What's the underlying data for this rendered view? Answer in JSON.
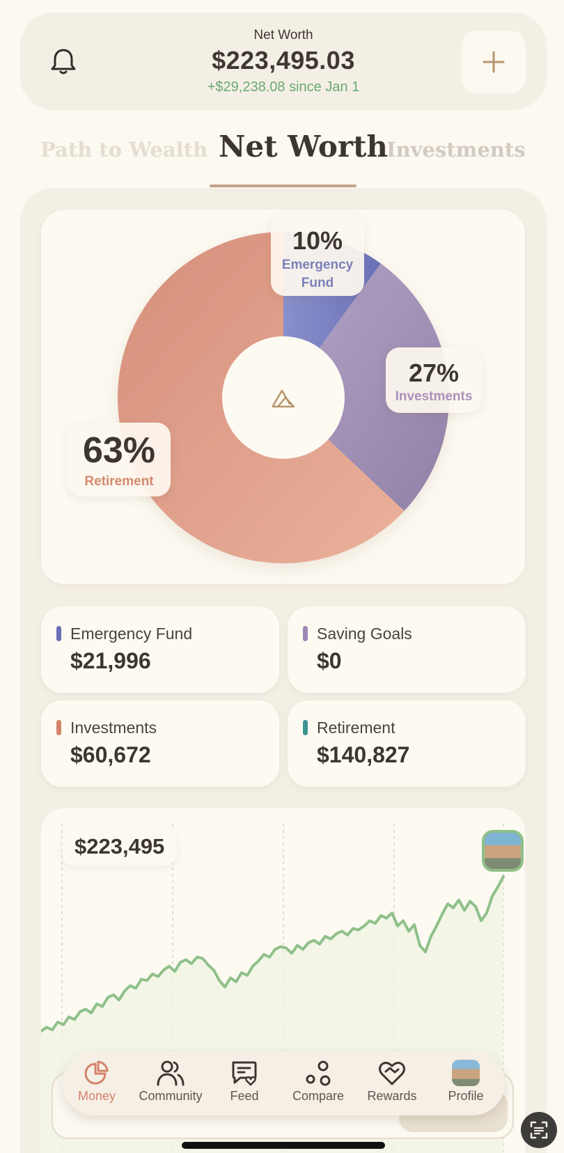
{
  "header": {
    "label": "Net Worth",
    "value": "$223,495.03",
    "change": "+$29,238.08 since Jan 1",
    "left_icon": "bell-icon",
    "right_icon": "plus-icon"
  },
  "tabs": [
    {
      "label": "Path to Wealth",
      "active": false
    },
    {
      "label": "Net Worth",
      "active": true
    },
    {
      "label": "Investments",
      "active": false
    }
  ],
  "donut": {
    "center_icon": "triangle-logo-icon",
    "segments": [
      {
        "pct": "10%",
        "name_line1": "Emergency",
        "name_line2": "Fund",
        "value": 10,
        "color_from": "#8289c6",
        "color_to": "#6a70b6"
      },
      {
        "pct": "27%",
        "name": "Investments",
        "value": 27,
        "color_from": "#ad9dc1",
        "color_to": "#9585a9"
      },
      {
        "pct": "63%",
        "name": "Retirement",
        "value": 63,
        "color_from": "#e9ae97",
        "color_to": "#d58f7b"
      }
    ]
  },
  "categories": [
    {
      "name": "Emergency Fund",
      "value": "$21,996",
      "color": "#6a70b6"
    },
    {
      "name": "Saving Goals",
      "value": "$0",
      "color": "#9c88b6"
    },
    {
      "name": "Investments",
      "value": "$60,672",
      "color": "#d4826a"
    },
    {
      "name": "Retirement",
      "value": "$140,827",
      "color": "#3d9494"
    }
  ],
  "chart_data": {
    "type": "line",
    "current_label": "$223,495",
    "color": "#8fc08a",
    "values": [
      0.05,
      0.08,
      0.06,
      0.12,
      0.1,
      0.16,
      0.14,
      0.2,
      0.22,
      0.19,
      0.26,
      0.24,
      0.31,
      0.33,
      0.29,
      0.36,
      0.4,
      0.38,
      0.45,
      0.44,
      0.49,
      0.47,
      0.52,
      0.55,
      0.51,
      0.58,
      0.6,
      0.57,
      0.62,
      0.61,
      0.56,
      0.52,
      0.44,
      0.39,
      0.46,
      0.43,
      0.5,
      0.48,
      0.55,
      0.59,
      0.64,
      0.62,
      0.68,
      0.7,
      0.69,
      0.65,
      0.71,
      0.68,
      0.73,
      0.75,
      0.72,
      0.78,
      0.76,
      0.8,
      0.82,
      0.79,
      0.84,
      0.83,
      0.86,
      0.9,
      0.88,
      0.94,
      0.92,
      0.96,
      0.86,
      0.9,
      0.82,
      0.87,
      0.71,
      0.66,
      0.78,
      0.86,
      0.95,
      1.03,
      1.0,
      1.06,
      0.98,
      1.05,
      1.01,
      0.9,
      0.96,
      1.09,
      1.16,
      1.24
    ]
  },
  "nav": [
    {
      "label": "Money",
      "icon": "pie-chart-icon",
      "active": true
    },
    {
      "label": "Community",
      "icon": "community-icon",
      "active": false
    },
    {
      "label": "Feed",
      "icon": "feed-icon",
      "active": false
    },
    {
      "label": "Compare",
      "icon": "compare-icon",
      "active": false
    },
    {
      "label": "Rewards",
      "icon": "rewards-icon",
      "active": false
    },
    {
      "label": "Profile",
      "icon": "profile-icon",
      "active": false
    }
  ]
}
